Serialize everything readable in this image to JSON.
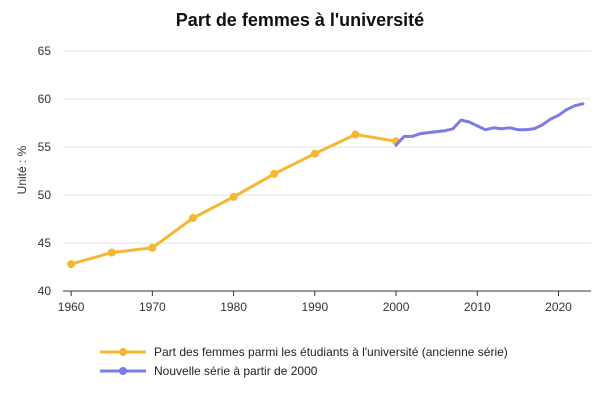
{
  "chart_data": {
    "type": "line",
    "title": "Part de femmes à l'université",
    "ylabel": "Unité : %",
    "xlabel": "",
    "xlim": [
      1959,
      2024
    ],
    "ylim": [
      40,
      65
    ],
    "yticks": [
      40,
      45,
      50,
      55,
      60,
      65
    ],
    "xticks": [
      1960,
      1970,
      1980,
      1990,
      2000,
      2010,
      2020
    ],
    "grid": "horizontal",
    "legend_position": "bottom",
    "series": [
      {
        "name": "Part des femmes parmi les étudiants à l'université (ancienne série)",
        "color": "#F5B731",
        "markers": true,
        "x": [
          1960,
          1965,
          1970,
          1975,
          1980,
          1985,
          1990,
          1995,
          2000
        ],
        "y": [
          42.8,
          44.0,
          44.5,
          47.6,
          49.8,
          52.2,
          54.3,
          56.3,
          55.6
        ]
      },
      {
        "name": "Nouvelle série à partir de 2000",
        "color": "#7B7BE6",
        "markers": false,
        "x": [
          2000,
          2001,
          2002,
          2003,
          2004,
          2005,
          2006,
          2007,
          2008,
          2009,
          2010,
          2011,
          2012,
          2013,
          2014,
          2015,
          2016,
          2017,
          2018,
          2019,
          2020,
          2021,
          2022,
          2023
        ],
        "y": [
          55.2,
          56.1,
          56.1,
          56.4,
          56.5,
          56.6,
          56.7,
          56.9,
          57.8,
          57.6,
          57.2,
          56.8,
          57.0,
          56.9,
          57.0,
          56.8,
          56.8,
          56.9,
          57.3,
          57.9,
          58.3,
          58.9,
          59.3,
          59.5
        ]
      }
    ]
  }
}
